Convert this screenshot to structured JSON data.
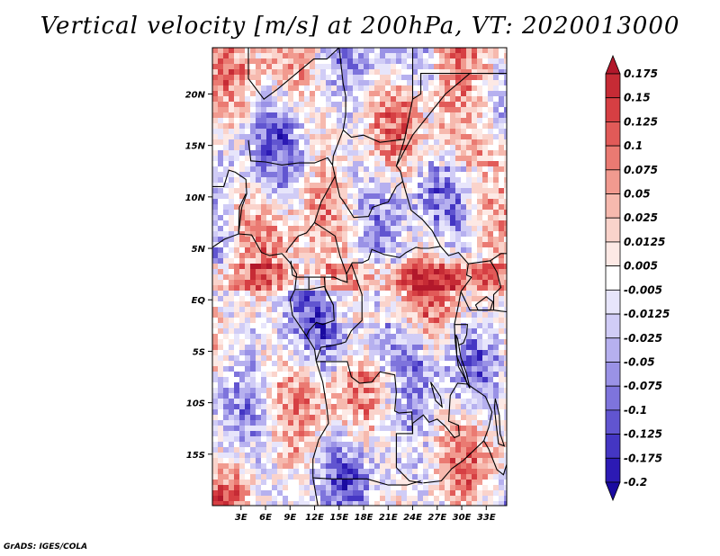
{
  "title": "Vertical velocity [m/s] at 200hPa, VT: 2020013000",
  "credit": "GrADS: IGES/COLA",
  "chart_data": {
    "type": "heatmap",
    "title": "Vertical velocity [m/s] at 200hPa, VT: 2020013000",
    "variable": "Vertical velocity",
    "units": "m/s",
    "level": "200hPa",
    "valid_time": "2020013000",
    "x_range": [
      -0.5,
      35.5
    ],
    "y_range": [
      -20,
      24.5
    ],
    "x_ticks": [
      {
        "value": 3,
        "label": "3E"
      },
      {
        "value": 6,
        "label": "6E"
      },
      {
        "value": 9,
        "label": "9E"
      },
      {
        "value": 12,
        "label": "12E"
      },
      {
        "value": 15,
        "label": "15E"
      },
      {
        "value": 18,
        "label": "18E"
      },
      {
        "value": 21,
        "label": "21E"
      },
      {
        "value": 24,
        "label": "24E"
      },
      {
        "value": 27,
        "label": "27E"
      },
      {
        "value": 30,
        "label": "30E"
      },
      {
        "value": 33,
        "label": "33E"
      }
    ],
    "y_ticks": [
      {
        "value": 20,
        "label": "20N"
      },
      {
        "value": 15,
        "label": "15N"
      },
      {
        "value": 10,
        "label": "10N"
      },
      {
        "value": 5,
        "label": "5N"
      },
      {
        "value": 0,
        "label": "EQ"
      },
      {
        "value": -5,
        "label": "5S"
      },
      {
        "value": -10,
        "label": "10S"
      },
      {
        "value": -15,
        "label": "15S"
      }
    ],
    "colorbar": {
      "levels": [
        "0.175",
        "0.15",
        "0.125",
        "0.1",
        "0.075",
        "0.05",
        "0.025",
        "0.0125",
        "0.005",
        "-0.005",
        "-0.0125",
        "-0.025",
        "-0.05",
        "-0.075",
        "-0.1",
        "-0.125",
        "-0.175",
        "-0.2"
      ],
      "colors": [
        "#b2182b",
        "#c62b35",
        "#d63f43",
        "#e15a58",
        "#ea7a72",
        "#f19a8f",
        "#f6b9ae",
        "#fad3cb",
        "#fde9e5",
        "#ffffff",
        "#e7e5fb",
        "#d0ccf6",
        "#b6b0ef",
        "#9a92e6",
        "#7e74dc",
        "#6155d0",
        "#4436c3",
        "#2c1ab4",
        "#1a0aa0"
      ]
    }
  }
}
